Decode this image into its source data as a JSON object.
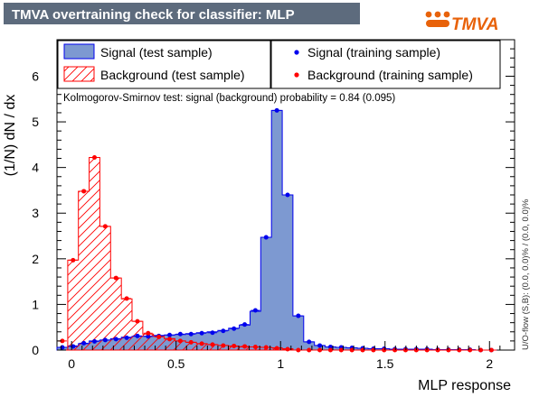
{
  "header": {
    "title": "TMVA overtraining check for classifier: MLP",
    "logo_text": "TMVA",
    "logo_brand_color": "#e8620a",
    "title_bg_color": "#5d6b7d"
  },
  "chart_data": {
    "type": "histogram",
    "title": "TMVA overtraining check for classifier: MLP",
    "xlabel": "MLP response",
    "ylabel": "(1/N) dN / dx",
    "xlim": [
      -0.07,
      2.12
    ],
    "ylim": [
      0,
      6.8
    ],
    "x_ticks": [
      0,
      0.5,
      1,
      1.5,
      2
    ],
    "x_tick_labels": [
      "0",
      "0.5",
      "1",
      "1.5",
      "2"
    ],
    "y_ticks": [
      0,
      1,
      2,
      3,
      4,
      5,
      6
    ],
    "y_tick_labels": [
      "0",
      "1",
      "2",
      "3",
      "4",
      "5",
      "6"
    ],
    "legend_position": "top, two columns",
    "annotation": "Kolmogorov-Smirnov test: signal (background) probability =  0.84 (0.095)",
    "side_note": "U/O-flow (S,B): (0.0, 0.0)% / (0.0, 0.0)%",
    "bin_edges": [
      -0.07,
      -0.0187,
      0.0327,
      0.084,
      0.1353,
      0.1867,
      0.238,
      0.2893,
      0.3407,
      0.392,
      0.4433,
      0.4947,
      0.546,
      0.5973,
      0.6487,
      0.7,
      0.7513,
      0.8027,
      0.854,
      0.9053,
      0.9567,
      1.008,
      1.0593,
      1.1107,
      1.162,
      1.2133,
      1.2647,
      1.316,
      1.3673,
      1.4187,
      1.47,
      1.5213,
      1.5727,
      1.624,
      1.6753,
      1.7267,
      1.778,
      1.8293,
      1.8807,
      1.932,
      1.9833,
      2.0347,
      2.086
    ],
    "series": [
      {
        "name": "Signal (test sample)",
        "style": "filled",
        "color": "#7d99d1",
        "edge_color": "#0000ee",
        "values": [
          0.06,
          0.09,
          0.14,
          0.2,
          0.22,
          0.25,
          0.28,
          0.3,
          0.3,
          0.32,
          0.33,
          0.34,
          0.36,
          0.38,
          0.4,
          0.43,
          0.48,
          0.55,
          0.85,
          2.47,
          5.25,
          3.4,
          0.75,
          0.18,
          0.1,
          0.07,
          0.06,
          0.05,
          0.04,
          0.03,
          0.03,
          0.02,
          0.02,
          0.02,
          0.02,
          0.01,
          0.01,
          0.01,
          0.01,
          0.0,
          0.0
        ]
      },
      {
        "name": "Background (test sample)",
        "style": "hatched",
        "color": "#ff0000",
        "values": [
          0.0,
          1.97,
          3.48,
          4.22,
          2.71,
          1.58,
          1.12,
          0.63,
          0.35,
          0.3,
          0.25,
          0.2,
          0.17,
          0.14,
          0.12,
          0.1,
          0.08,
          0.07,
          0.07,
          0.06,
          0.05,
          0.03,
          0.0,
          0.0,
          0.0,
          0.0,
          0.0,
          0.0,
          0.0,
          0.0,
          0.0,
          0.0,
          0.0,
          0.0,
          0.0,
          0.0,
          0.0,
          0.0,
          0.0,
          0.0,
          0.0
        ]
      },
      {
        "name": "Signal (training sample)",
        "style": "points",
        "color": "#0000ee",
        "values": [
          0.06,
          0.08,
          0.15,
          0.19,
          0.22,
          0.24,
          0.27,
          0.31,
          0.3,
          0.31,
          0.33,
          0.35,
          0.35,
          0.37,
          0.38,
          0.42,
          0.47,
          0.56,
          0.87,
          2.47,
          5.25,
          3.4,
          0.75,
          0.18,
          0.1,
          0.07,
          0.06,
          0.05,
          0.04,
          0.03,
          0.03,
          0.02,
          0.02,
          0.02,
          0.02,
          0.01,
          0.01,
          0.01,
          0.01,
          0.0,
          0.0
        ]
      },
      {
        "name": "Background (training sample)",
        "style": "points",
        "color": "#ff0000",
        "values": [
          0.2,
          1.97,
          3.48,
          4.22,
          2.71,
          1.58,
          1.13,
          0.63,
          0.37,
          0.29,
          0.24,
          0.2,
          0.17,
          0.14,
          0.12,
          0.1,
          0.09,
          0.08,
          0.07,
          0.06,
          0.04,
          0.02,
          0.0,
          0.0,
          0.0,
          0.0,
          0.0,
          0.0,
          0.0,
          0.0,
          0.0,
          0.0,
          0.0,
          0.0,
          0.0,
          0.0,
          0.0,
          0.0,
          0.0,
          0.0,
          0.0
        ]
      }
    ]
  }
}
